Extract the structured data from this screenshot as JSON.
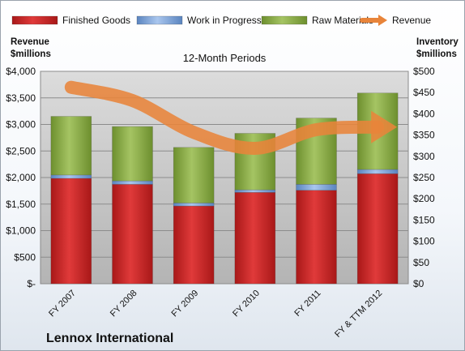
{
  "chart_data": {
    "type": "bar",
    "stacked": true,
    "subtitle": "12-Month Periods",
    "company": "Lennox International",
    "categories": [
      "FY 2007",
      "FY 2008",
      "FY 2009",
      "FY 2010",
      "FY 2011",
      "FY & TTM 2012"
    ],
    "left_axis": {
      "title_line1": "Revenue",
      "title_line2": "$millions",
      "ylim": [
        0,
        4000
      ],
      "ticks": [
        "$-",
        "$500",
        "$1,000",
        "$1,500",
        "$2,000",
        "$2,500",
        "$3,000",
        "$3,500",
        "$4,000"
      ]
    },
    "right_axis": {
      "title_line1": "Inventory",
      "title_line2": "$millions",
      "ylim": [
        0,
        500
      ],
      "ticks": [
        "$0",
        "$50",
        "$100",
        "$150",
        "$200",
        "$250",
        "$300",
        "$350",
        "$400",
        "$450",
        "$500"
      ]
    },
    "series": [
      {
        "name": "Finished Goods",
        "axis": "right",
        "color": "#d42a2a",
        "values": [
          248,
          234,
          183,
          215,
          220,
          259
        ]
      },
      {
        "name": "Work in Progress",
        "axis": "right",
        "color": "#7ea6dc",
        "values": [
          8,
          8,
          7,
          6,
          14,
          10
        ]
      },
      {
        "name": "Raw Materials",
        "axis": "right",
        "color": "#8fb04a",
        "values": [
          138,
          128,
          131,
          133,
          156,
          180
        ]
      },
      {
        "name": "Revenue",
        "axis": "left",
        "type": "line",
        "color": "#e8843a",
        "values": [
          3700,
          3450,
          2850,
          2550,
          2900,
          2950
        ]
      }
    ],
    "grid": true,
    "legend": "top"
  }
}
